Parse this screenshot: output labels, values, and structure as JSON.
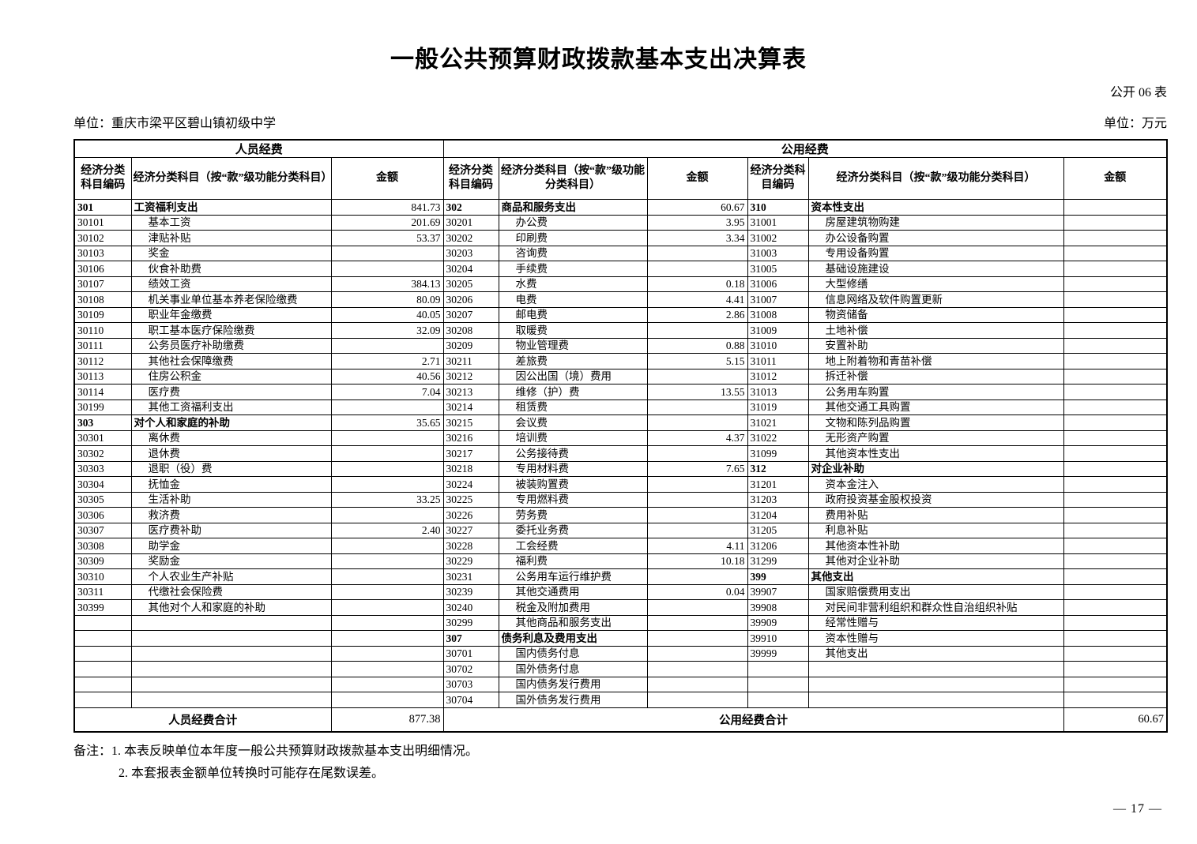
{
  "title": "一般公共预算财政拨款基本支出决算表",
  "table_tag": "公开 06 表",
  "unit_left": "单位：重庆市梁平区碧山镇初级中学",
  "unit_right": "单位：万元",
  "table": {
    "band_left": "人员经费",
    "band_right": "公用经费",
    "col_code": "经济分类科目编码",
    "col_subject": "经济分类科目（按“款”级功能分类科目）",
    "col_amount": "金额",
    "rows": [
      {
        "l": [
          "301",
          "工资福利支出",
          "841.73"
        ],
        "m": [
          "302",
          "商品和服务支出",
          "60.67"
        ],
        "r": [
          "310",
          "资本性支出",
          ""
        ]
      },
      {
        "l": [
          "30101",
          "基本工资",
          "201.69"
        ],
        "m": [
          "30201",
          "办公费",
          "3.95"
        ],
        "r": [
          "31001",
          "房屋建筑物购建",
          ""
        ]
      },
      {
        "l": [
          "30102",
          "津贴补贴",
          "53.37"
        ],
        "m": [
          "30202",
          "印刷费",
          "3.34"
        ],
        "r": [
          "31002",
          "办公设备购置",
          ""
        ]
      },
      {
        "l": [
          "30103",
          "奖金",
          ""
        ],
        "m": [
          "30203",
          "咨询费",
          ""
        ],
        "r": [
          "31003",
          "专用设备购置",
          ""
        ]
      },
      {
        "l": [
          "30106",
          "伙食补助费",
          ""
        ],
        "m": [
          "30204",
          "手续费",
          ""
        ],
        "r": [
          "31005",
          "基础设施建设",
          ""
        ]
      },
      {
        "l": [
          "30107",
          "绩效工资",
          "384.13"
        ],
        "m": [
          "30205",
          "水费",
          "0.18"
        ],
        "r": [
          "31006",
          "大型修缮",
          ""
        ]
      },
      {
        "l": [
          "30108",
          "机关事业单位基本养老保险缴费",
          "80.09"
        ],
        "m": [
          "30206",
          "电费",
          "4.41"
        ],
        "r": [
          "31007",
          "信息网络及软件购置更新",
          ""
        ]
      },
      {
        "l": [
          "30109",
          "职业年金缴费",
          "40.05"
        ],
        "m": [
          "30207",
          "邮电费",
          "2.86"
        ],
        "r": [
          "31008",
          "物资储备",
          ""
        ]
      },
      {
        "l": [
          "30110",
          "职工基本医疗保险缴费",
          "32.09"
        ],
        "m": [
          "30208",
          "取暖费",
          ""
        ],
        "r": [
          "31009",
          "土地补偿",
          ""
        ]
      },
      {
        "l": [
          "30111",
          "公务员医疗补助缴费",
          ""
        ],
        "m": [
          "30209",
          "物业管理费",
          "0.88"
        ],
        "r": [
          "31010",
          "安置补助",
          ""
        ]
      },
      {
        "l": [
          "30112",
          "其他社会保障缴费",
          "2.71"
        ],
        "m": [
          "30211",
          "差旅费",
          "5.15"
        ],
        "r": [
          "31011",
          "地上附着物和青苗补偿",
          ""
        ]
      },
      {
        "l": [
          "30113",
          "住房公积金",
          "40.56"
        ],
        "m": [
          "30212",
          "因公出国（境）费用",
          ""
        ],
        "r": [
          "31012",
          "拆迁补偿",
          ""
        ]
      },
      {
        "l": [
          "30114",
          "医疗费",
          "7.04"
        ],
        "m": [
          "30213",
          "维修（护）费",
          "13.55"
        ],
        "r": [
          "31013",
          "公务用车购置",
          ""
        ]
      },
      {
        "l": [
          "30199",
          "其他工资福利支出",
          ""
        ],
        "m": [
          "30214",
          "租赁费",
          ""
        ],
        "r": [
          "31019",
          "其他交通工具购置",
          ""
        ]
      },
      {
        "l": [
          "303",
          "对个人和家庭的补助",
          "35.65"
        ],
        "m": [
          "30215",
          "会议费",
          ""
        ],
        "r": [
          "31021",
          "文物和陈列品购置",
          ""
        ]
      },
      {
        "l": [
          "30301",
          "离休费",
          ""
        ],
        "m": [
          "30216",
          "培训费",
          "4.37"
        ],
        "r": [
          "31022",
          "无形资产购置",
          ""
        ]
      },
      {
        "l": [
          "30302",
          "退休费",
          ""
        ],
        "m": [
          "30217",
          "公务接待费",
          ""
        ],
        "r": [
          "31099",
          "其他资本性支出",
          ""
        ]
      },
      {
        "l": [
          "30303",
          "退职（役）费",
          ""
        ],
        "m": [
          "30218",
          "专用材料费",
          "7.65"
        ],
        "r": [
          "312",
          "对企业补助",
          ""
        ]
      },
      {
        "l": [
          "30304",
          "抚恤金",
          ""
        ],
        "m": [
          "30224",
          "被装购置费",
          ""
        ],
        "r": [
          "31201",
          "资本金注入",
          ""
        ]
      },
      {
        "l": [
          "30305",
          "生活补助",
          "33.25"
        ],
        "m": [
          "30225",
          "专用燃料费",
          ""
        ],
        "r": [
          "31203",
          "政府投资基金股权投资",
          ""
        ]
      },
      {
        "l": [
          "30306",
          "救济费",
          ""
        ],
        "m": [
          "30226",
          "劳务费",
          ""
        ],
        "r": [
          "31204",
          "费用补贴",
          ""
        ]
      },
      {
        "l": [
          "30307",
          "医疗费补助",
          "2.40"
        ],
        "m": [
          "30227",
          "委托业务费",
          ""
        ],
        "r": [
          "31205",
          "利息补贴",
          ""
        ]
      },
      {
        "l": [
          "30308",
          "助学金",
          ""
        ],
        "m": [
          "30228",
          "工会经费",
          "4.11"
        ],
        "r": [
          "31206",
          "其他资本性补助",
          ""
        ]
      },
      {
        "l": [
          "30309",
          "奖励金",
          ""
        ],
        "m": [
          "30229",
          "福利费",
          "10.18"
        ],
        "r": [
          "31299",
          "其他对企业补助",
          ""
        ]
      },
      {
        "l": [
          "30310",
          "个人农业生产补贴",
          ""
        ],
        "m": [
          "30231",
          "公务用车运行维护费",
          ""
        ],
        "r": [
          "399",
          "其他支出",
          ""
        ]
      },
      {
        "l": [
          "30311",
          "代缴社会保险费",
          ""
        ],
        "m": [
          "30239",
          "其他交通费用",
          "0.04"
        ],
        "r": [
          "39907",
          "国家赔偿费用支出",
          ""
        ]
      },
      {
        "l": [
          "30399",
          "其他对个人和家庭的补助",
          ""
        ],
        "m": [
          "30240",
          "税金及附加费用",
          ""
        ],
        "r": [
          "39908",
          "对民间非营利组织和群众性自治组织补贴",
          ""
        ]
      },
      {
        "l": [
          "",
          "",
          ""
        ],
        "m": [
          "30299",
          "其他商品和服务支出",
          ""
        ],
        "r": [
          "39909",
          "经常性赠与",
          ""
        ]
      },
      {
        "l": [
          "",
          "",
          ""
        ],
        "m": [
          "307",
          "债务利息及费用支出",
          ""
        ],
        "r": [
          "39910",
          "资本性赠与",
          ""
        ]
      },
      {
        "l": [
          "",
          "",
          ""
        ],
        "m": [
          "30701",
          "国内债务付息",
          ""
        ],
        "r": [
          "39999",
          "其他支出",
          ""
        ]
      },
      {
        "l": [
          "",
          "",
          ""
        ],
        "m": [
          "30702",
          "国外债务付息",
          ""
        ],
        "r": [
          "",
          "",
          ""
        ]
      },
      {
        "l": [
          "",
          "",
          ""
        ],
        "m": [
          "30703",
          "国内债务发行费用",
          ""
        ],
        "r": [
          "",
          "",
          ""
        ]
      },
      {
        "l": [
          "",
          "",
          ""
        ],
        "m": [
          "30704",
          "国外债务发行费用",
          ""
        ],
        "r": [
          "",
          "",
          ""
        ]
      }
    ],
    "totals": {
      "left_label": "人员经费合计",
      "left_amount": "877.38",
      "right_label": "公用经费合计",
      "right_amount": "60.67"
    }
  },
  "notes": {
    "line1": "备注：1. 本表反映单位本年度一般公共预算财政拨款基本支出明细情况。",
    "line2": "2. 本套报表金额单位转换时可能存在尾数误差。"
  },
  "page_number": "— 17 —"
}
